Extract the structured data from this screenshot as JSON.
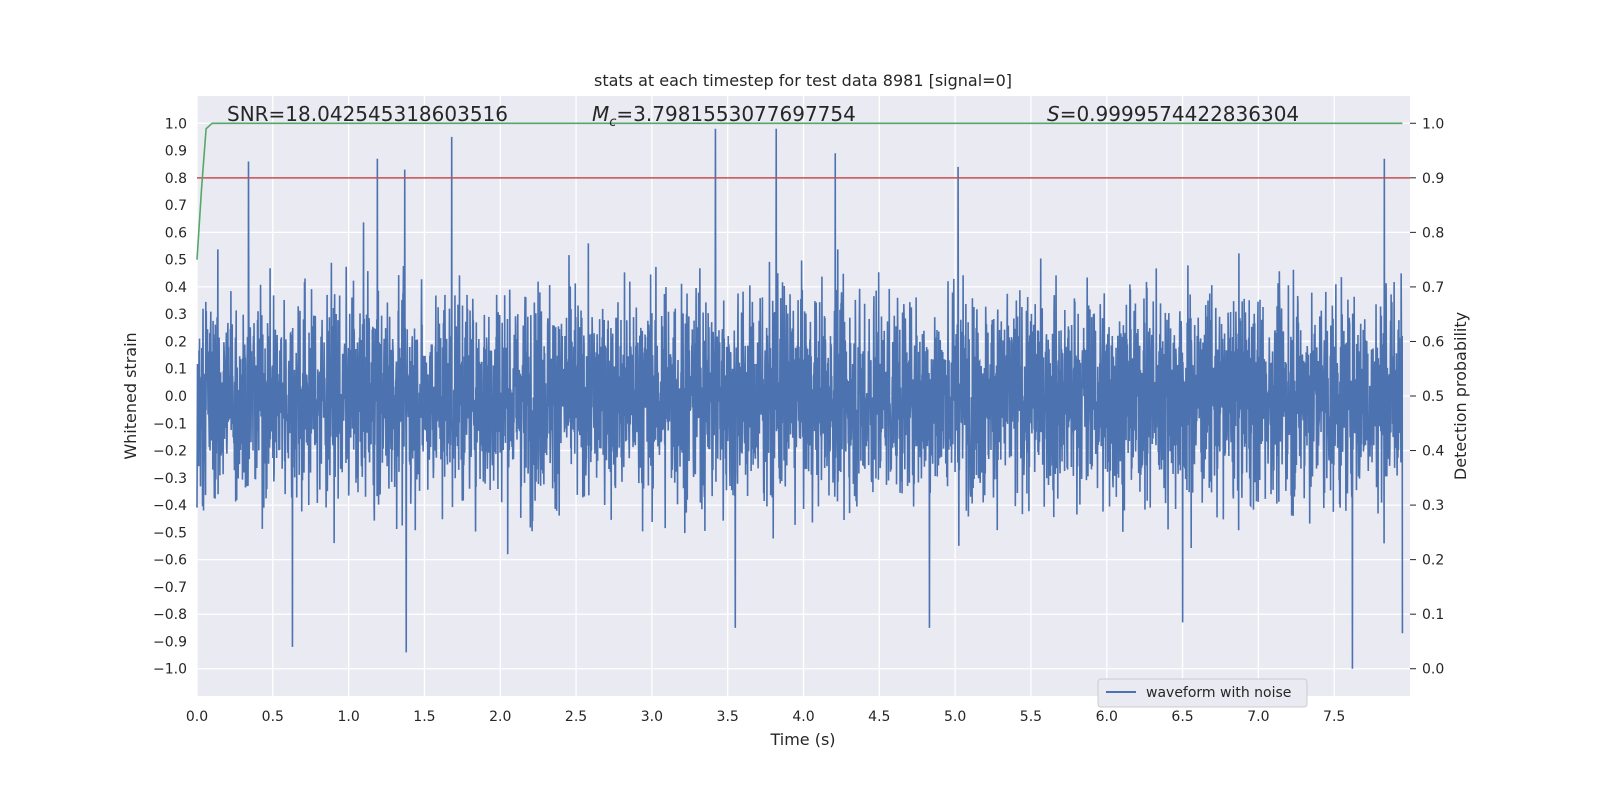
{
  "chart_data": {
    "type": "line",
    "title": "stats at each timestep for test data 8981 [signal=0]",
    "xlabel": "Time (s)",
    "ylabel_left": "Whitened strain",
    "ylabel_right": "Detection probability",
    "xlim": [
      0.0,
      8.0
    ],
    "ylim_left": [
      -1.1,
      1.1
    ],
    "ylim_right": [
      -0.05,
      1.05
    ],
    "x_ticks": [
      "0.0",
      "0.5",
      "1.0",
      "1.5",
      "2.0",
      "2.5",
      "3.0",
      "3.5",
      "4.0",
      "4.5",
      "5.0",
      "5.5",
      "6.0",
      "6.5",
      "7.0",
      "7.5"
    ],
    "y_left_ticks": [
      "1.0",
      "0.9",
      "0.8",
      "0.7",
      "0.6",
      "0.5",
      "0.4",
      "0.3",
      "0.2",
      "0.1",
      "0.0",
      "−0.1",
      "−0.2",
      "−0.3",
      "−0.4",
      "−0.5",
      "−0.6",
      "−0.7",
      "−0.8",
      "−0.9",
      "−1.0"
    ],
    "y_right_ticks": [
      "1.0",
      "0.9",
      "0.8",
      "0.7",
      "0.6",
      "0.5",
      "0.4",
      "0.3",
      "0.2",
      "0.1",
      "0.0"
    ],
    "grid": true,
    "legend": {
      "position": "lower-right",
      "entries": [
        "waveform with noise"
      ]
    },
    "annotations": {
      "snr": "SNR=18.042545318603516",
      "mc_symbol": "M",
      "mc_sub": "c",
      "mc_value": "=3.7981553077697754",
      "s_symbol": "S",
      "s_value": "=0.9999574422836304"
    },
    "series": [
      {
        "name": "waveform with noise",
        "axis": "left",
        "color": "#4c72b0",
        "description": "noisy whitened strain, roughly within [-1.0, 1.0]",
        "noise_amplitude": 0.3,
        "peaks": [
          {
            "x": 0.34,
            "y": 0.86
          },
          {
            "x": 1.19,
            "y": 0.87
          },
          {
            "x": 1.37,
            "y": 0.83
          },
          {
            "x": 1.68,
            "y": 0.95
          },
          {
            "x": 3.42,
            "y": 0.98
          },
          {
            "x": 3.82,
            "y": 0.98
          },
          {
            "x": 4.21,
            "y": 0.89
          },
          {
            "x": 5.02,
            "y": 0.84
          },
          {
            "x": 7.83,
            "y": 0.87
          },
          {
            "x": 0.63,
            "y": -0.92
          },
          {
            "x": 1.38,
            "y": -0.94
          },
          {
            "x": 3.55,
            "y": -0.85
          },
          {
            "x": 4.83,
            "y": -0.85
          },
          {
            "x": 6.5,
            "y": -0.83
          },
          {
            "x": 7.62,
            "y": -1.0
          },
          {
            "x": 7.95,
            "y": -0.87
          }
        ]
      },
      {
        "name": "detection probability",
        "axis": "right",
        "color": "#55a868",
        "x": [
          0.0,
          0.03,
          0.06,
          0.1,
          0.15,
          0.5,
          2.0,
          4.0,
          6.0,
          7.95
        ],
        "y": [
          0.75,
          0.88,
          0.99,
          1.0,
          1.0,
          1.0,
          1.0,
          1.0,
          1.0,
          1.0
        ]
      },
      {
        "name": "threshold",
        "axis": "right",
        "color": "#c44e52",
        "x": [
          0.0,
          8.0
        ],
        "y": [
          0.9,
          0.9
        ]
      }
    ]
  }
}
